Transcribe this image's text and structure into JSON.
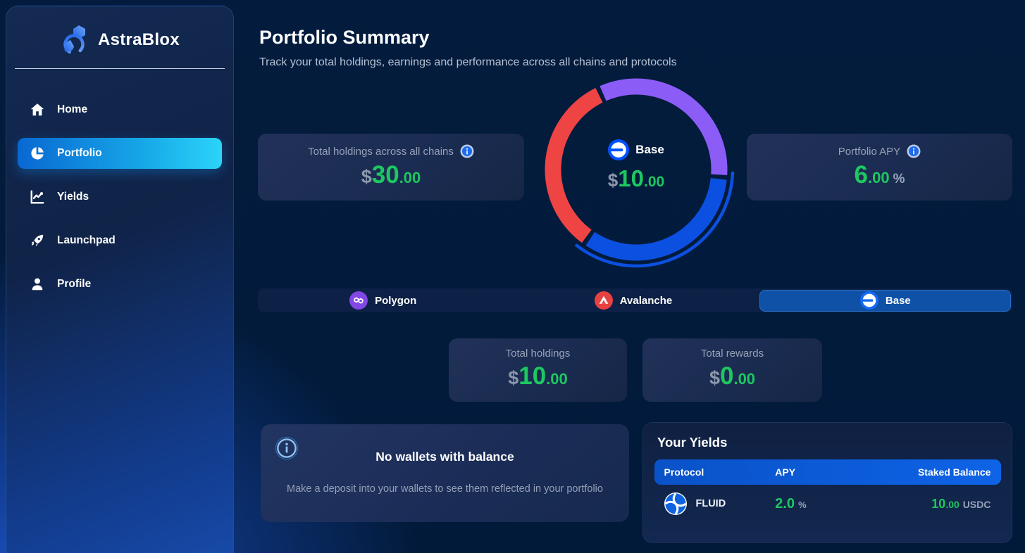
{
  "sidebar": {
    "brand": "AstraBlox",
    "items": [
      {
        "label": "Home"
      },
      {
        "label": "Portfolio",
        "active": true
      },
      {
        "label": "Yields"
      },
      {
        "label": "Launchpad"
      },
      {
        "label": "Profile"
      }
    ]
  },
  "header": {
    "title": "Portfolio Summary",
    "subtitle": "Track your total holdings, earnings and performance across all chains and protocols"
  },
  "overview": {
    "total_holdings": {
      "label": "Total holdings across all chains",
      "currency": "$",
      "whole": "30",
      "fraction": ".00"
    },
    "portfolio_apy": {
      "label": "Portfolio APY",
      "whole": "6",
      "fraction": ".00",
      "suffix": "%"
    }
  },
  "chart_data": {
    "type": "pie",
    "subtype": "donut",
    "categories": [
      "Polygon",
      "Base",
      "Avalanche"
    ],
    "values": [
      10,
      10,
      10
    ],
    "colors": [
      "#8b5cf6",
      "#0b50e0",
      "#ef4444"
    ],
    "selected": "Base",
    "rotation_deg": -25,
    "center_label": "Base $10.00",
    "legend_position": "none",
    "grid": false
  },
  "donut_center": {
    "chain": "Base",
    "currency": "$",
    "whole": "10",
    "fraction": ".00"
  },
  "chain_tabs": {
    "selected": "Base",
    "items": [
      {
        "label": "Polygon",
        "color": "#8247e5"
      },
      {
        "label": "Avalanche",
        "color": "#e84142"
      },
      {
        "label": "Base",
        "color": "#0052ff"
      }
    ]
  },
  "chain_summary": {
    "holdings": {
      "label": "Total holdings",
      "currency": "$",
      "whole": "10",
      "fraction": ".00"
    },
    "rewards": {
      "label": "Total rewards",
      "currency": "$",
      "whole": "0",
      "fraction": ".00"
    }
  },
  "empty_state": {
    "title": "No wallets with balance",
    "description": "Make a deposit into your wallets to see them reflected in your portfolio"
  },
  "yields": {
    "title": "Your Yields",
    "columns": [
      "Protocol",
      "APY",
      "Staked Balance"
    ],
    "rows": [
      {
        "protocol": "FLUID",
        "apy": "2.0",
        "apy_suffix": "%",
        "balance_whole": "10",
        "balance_fraction": ".00",
        "balance_unit": "USDC"
      }
    ]
  },
  "colors": {
    "accent_green": "#1dc860",
    "sidebar_active_gradient": [
      "#0968d2",
      "#2bd4f8"
    ],
    "tab_selected": "#0e51a6",
    "table_header_blue": "#0b57d6",
    "polygon_purple": "#8247e5",
    "avalanche_red": "#e84142",
    "base_blue": "#0052ff"
  }
}
